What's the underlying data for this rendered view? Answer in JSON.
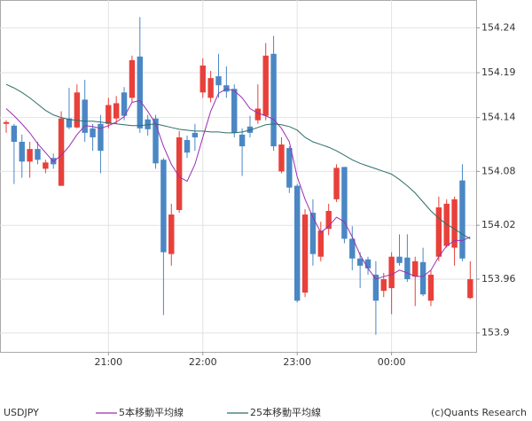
{
  "chart_data": {
    "type": "candlestick",
    "symbol": "USDJPY",
    "credit": "(c)Quants Research",
    "categories": [
      null,
      null,
      null,
      null,
      null,
      null,
      null,
      null,
      null,
      null,
      null,
      null,
      null,
      "21:00",
      null,
      null,
      null,
      null,
      null,
      null,
      null,
      null,
      null,
      null,
      null,
      "22:00",
      null,
      null,
      null,
      null,
      null,
      null,
      null,
      null,
      null,
      null,
      null,
      "23:00",
      null,
      null,
      null,
      null,
      null,
      null,
      null,
      null,
      null,
      null,
      null,
      "00:00",
      null,
      null,
      null,
      null,
      null,
      null,
      null,
      null,
      null,
      null
    ],
    "open": [
      154.133,
      154.131,
      154.113,
      154.091,
      154.105,
      154.083,
      154.095,
      154.064,
      154.139,
      154.129,
      154.16,
      154.128,
      154.133,
      154.133,
      154.139,
      154.168,
      154.162,
      154.208,
      154.138,
      154.139,
      154.093,
      153.988,
      154.037,
      154.115,
      154.123,
      154.168,
      154.162,
      154.186,
      154.176,
      154.172,
      154.121,
      154.13,
      154.137,
      154.142,
      154.211,
      154.08,
      154.106,
      154.064,
      153.945,
      154.034,
      153.985,
      154.016,
      154.049,
      154.085,
      154.005,
      153.983,
      153.982,
      153.965,
      153.947,
      153.95,
      153.985,
      153.984,
      153.963,
      153.979,
      153.936,
      153.985,
      153.997,
      153.995,
      154.07,
      153.939
    ],
    "close": [
      154.135,
      154.113,
      154.091,
      154.105,
      154.093,
      154.09,
      154.088,
      154.139,
      154.129,
      154.168,
      154.123,
      154.118,
      154.103,
      154.154,
      154.156,
      154.142,
      154.204,
      154.128,
      154.127,
      154.089,
      153.99,
      154.032,
      154.118,
      154.101,
      154.118,
      154.198,
      154.184,
      154.176,
      154.169,
      154.123,
      154.108,
      154.123,
      154.15,
      154.209,
      154.108,
      154.11,
      154.062,
      153.936,
      154.032,
      153.988,
      154.014,
      154.036,
      154.084,
      154.005,
      153.983,
      153.975,
      153.972,
      153.936,
      153.96,
      153.985,
      153.978,
      153.96,
      153.98,
      153.943,
      153.965,
      154.04,
      154.044,
      154.049,
      153.983,
      153.96
    ],
    "high": [
      154.137,
      154.133,
      154.121,
      154.113,
      154.113,
      154.093,
      154.1,
      154.147,
      154.173,
      154.177,
      154.182,
      154.133,
      154.143,
      154.162,
      154.164,
      154.174,
      154.209,
      154.252,
      154.143,
      154.143,
      154.095,
      154.044,
      154.125,
      154.12,
      154.133,
      154.206,
      154.192,
      154.211,
      154.197,
      154.177,
      154.128,
      154.142,
      154.177,
      154.223,
      154.231,
      154.118,
      154.108,
      154.066,
      154.038,
      154.049,
      154.024,
      154.044,
      154.088,
      154.085,
      154.019,
      153.99,
      153.985,
      153.98,
      153.967,
      153.99,
      154.01,
      154.01,
      153.985,
      153.995,
      153.97,
      154.052,
      154.049,
      154.052,
      154.088,
      153.98
    ],
    "low": [
      154.123,
      154.066,
      154.073,
      154.073,
      154.088,
      154.078,
      154.083,
      154.064,
      154.127,
      154.128,
      154.113,
      154.103,
      154.078,
      154.128,
      154.133,
      154.137,
      154.157,
      154.123,
      154.12,
      154.083,
      153.92,
      153.975,
      154.034,
      154.095,
      154.103,
      154.162,
      154.157,
      154.162,
      154.162,
      154.118,
      154.075,
      154.118,
      154.133,
      154.137,
      154.103,
      154.078,
      154.056,
      153.934,
      153.94,
      153.975,
      153.98,
      154.009,
      154.046,
      154.0,
      153.97,
      153.95,
      153.965,
      153.898,
      153.94,
      153.921,
      153.975,
      153.957,
      153.93,
      153.941,
      153.93,
      153.98,
      153.995,
      153.975,
      153.98,
      153.938
    ],
    "up_color": "#e8403a",
    "down_color": "#4a87c4",
    "series": [
      {
        "name": "5本移動平均線",
        "color": "#9a2fb0",
        "values": [
          154.15,
          154.142,
          154.133,
          154.123,
          154.111,
          154.101,
          154.091,
          154.098,
          154.108,
          154.121,
          154.131,
          154.13,
          154.128,
          154.131,
          154.135,
          154.141,
          154.157,
          154.159,
          154.147,
          154.133,
          154.108,
          154.088,
          154.074,
          154.069,
          154.088,
          154.118,
          154.147,
          154.167,
          154.172,
          154.17,
          154.162,
          154.15,
          154.145,
          154.142,
          154.138,
          154.128,
          154.113,
          154.074,
          154.049,
          154.029,
          154.012,
          154.019,
          154.029,
          154.024,
          154.007,
          153.987,
          153.972,
          153.96,
          153.963,
          153.965,
          153.97,
          153.967,
          153.963,
          153.963,
          153.97,
          153.985,
          153.997,
          154.003,
          154.003,
          154.007
        ]
      },
      {
        "name": "25本移動平均線",
        "color": "#2e6e68",
        "values": [
          154.177,
          154.173,
          154.168,
          154.162,
          154.155,
          154.148,
          154.143,
          154.14,
          154.138,
          154.137,
          154.136,
          154.136,
          154.135,
          154.134,
          154.133,
          154.132,
          154.131,
          154.131,
          154.132,
          154.133,
          154.131,
          154.129,
          154.127,
          154.126,
          154.125,
          154.125,
          154.124,
          154.124,
          154.123,
          154.123,
          154.124,
          154.126,
          154.129,
          154.132,
          154.133,
          154.132,
          154.13,
          154.126,
          154.118,
          154.113,
          154.11,
          154.107,
          154.103,
          154.098,
          154.093,
          154.089,
          154.086,
          154.083,
          154.08,
          154.077,
          154.071,
          154.064,
          154.056,
          154.046,
          154.036,
          154.028,
          154.021,
          154.016,
          154.01,
          154.005
        ]
      }
    ],
    "ylim": [
      153.879,
      154.271
    ],
    "yticks": [
      153.9,
      153.96,
      154.02,
      154.08,
      154.14,
      154.19,
      154.24
    ],
    "grid": true
  }
}
